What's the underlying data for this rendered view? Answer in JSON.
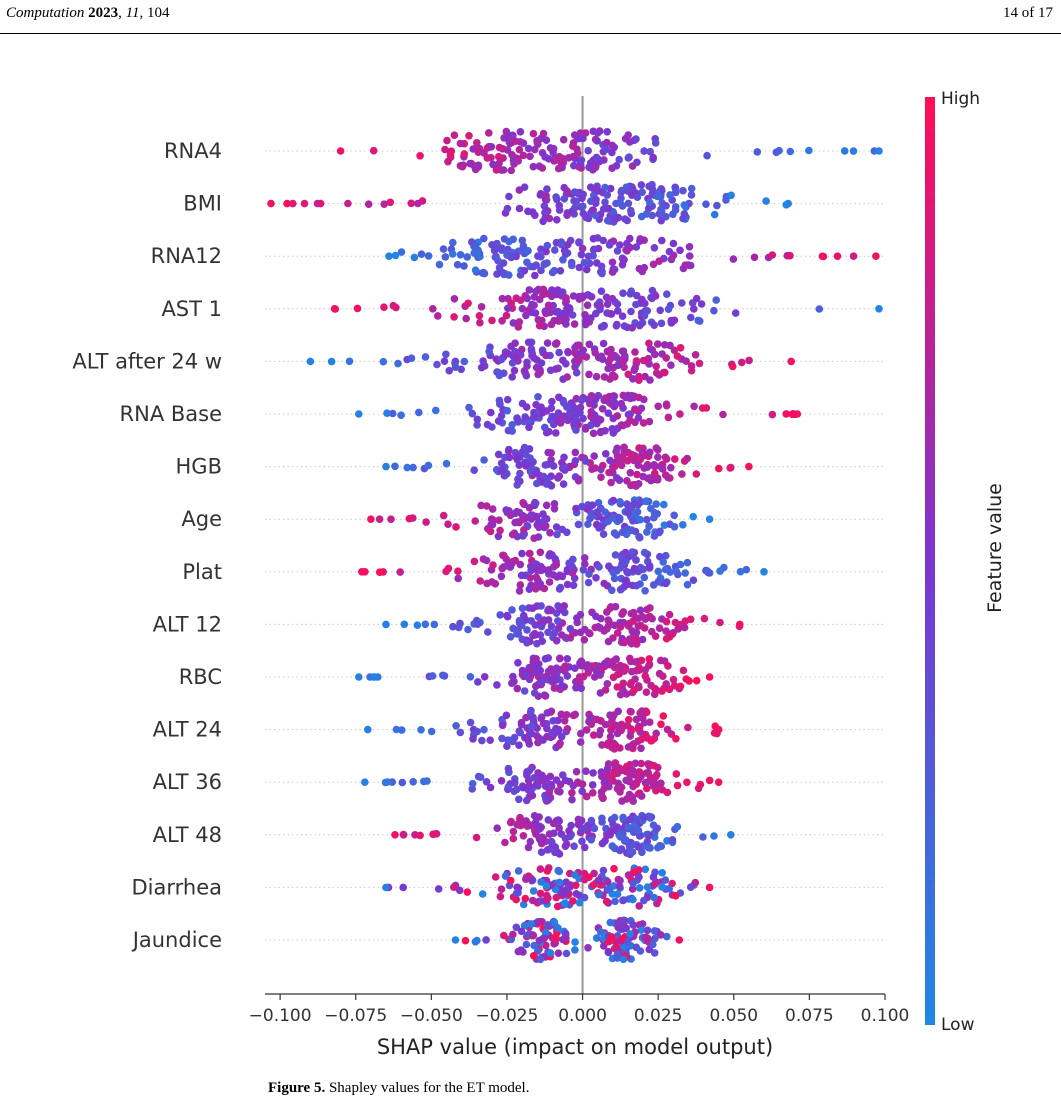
{
  "header": {
    "journal": "Computation",
    "year": "2023",
    "volume": "11",
    "article": "104",
    "page": "14 of 17"
  },
  "caption": {
    "label": "Figure 5.",
    "text": "Shapley values for the ET model."
  },
  "colors": {
    "low": "#1e88e5",
    "mid": "#7b36d0",
    "high": "#ff0d57",
    "zero_line": "#999999"
  },
  "chart_data": {
    "type": "scatter",
    "subtype": "shap-beeswarm",
    "xlabel": "SHAP value (impact on model output)",
    "xlim": [
      -0.105,
      0.1
    ],
    "xticks": [
      -0.1,
      -0.075,
      -0.05,
      -0.025,
      0.0,
      0.025,
      0.05,
      0.075,
      0.1
    ],
    "xtick_labels": [
      "−0.100",
      "−0.075",
      "−0.050",
      "−0.025",
      "0.000",
      "0.025",
      "0.050",
      "0.075",
      "0.100"
    ],
    "grid": "horizontal dotted per feature",
    "colorbar": {
      "label": "Feature value",
      "high_label": "High",
      "low_label": "Low",
      "position": "right"
    },
    "features": [
      {
        "name": "RNA4",
        "min": -0.08,
        "max": 0.098,
        "modes": [
          -0.025,
          0.005
        ],
        "high_side": "negative"
      },
      {
        "name": "BMI",
        "min": -0.103,
        "max": 0.068,
        "modes": [
          -0.005,
          0.018
        ],
        "high_side": "negative"
      },
      {
        "name": "RNA12",
        "min": -0.064,
        "max": 0.097,
        "modes": [
          -0.022,
          0.012
        ],
        "high_side": "positive"
      },
      {
        "name": "AST 1",
        "min": -0.082,
        "max": 0.098,
        "modes": [
          -0.012,
          0.015
        ],
        "high_side": "negative"
      },
      {
        "name": "ALT after 24 w",
        "min": -0.09,
        "max": 0.069,
        "modes": [
          -0.015,
          0.015
        ],
        "high_side": "positive"
      },
      {
        "name": "RNA Base",
        "min": -0.074,
        "max": 0.071,
        "modes": [
          -0.012,
          0.008
        ],
        "high_side": "positive"
      },
      {
        "name": "HGB",
        "min": -0.065,
        "max": 0.055,
        "modes": [
          -0.015,
          0.018
        ],
        "high_side": "positive"
      },
      {
        "name": "Age",
        "min": -0.07,
        "max": 0.042,
        "modes": [
          -0.02,
          0.015
        ],
        "high_side": "negative"
      },
      {
        "name": "Plat",
        "min": -0.073,
        "max": 0.06,
        "modes": [
          -0.015,
          0.017
        ],
        "high_side": "negative"
      },
      {
        "name": "ALT 12",
        "min": -0.065,
        "max": 0.052,
        "modes": [
          -0.012,
          0.017
        ],
        "high_side": "positive"
      },
      {
        "name": "RBC",
        "min": -0.074,
        "max": 0.042,
        "modes": [
          -0.01,
          0.017
        ],
        "high_side": "positive"
      },
      {
        "name": "ALT 24",
        "min": -0.071,
        "max": 0.045,
        "modes": [
          -0.015,
          0.014
        ],
        "high_side": "positive"
      },
      {
        "name": "ALT 36",
        "min": -0.072,
        "max": 0.045,
        "modes": [
          -0.012,
          0.015
        ],
        "high_side": "positive"
      },
      {
        "name": "ALT 48",
        "min": -0.062,
        "max": 0.049,
        "modes": [
          -0.012,
          0.016
        ],
        "high_side": "negative"
      },
      {
        "name": "Diarrhea",
        "min": -0.065,
        "max": 0.042,
        "modes": [
          -0.012,
          0.015
        ],
        "high_side": "mixed"
      },
      {
        "name": "Jaundice",
        "min": -0.042,
        "max": 0.032,
        "modes": [
          -0.012,
          0.014
        ],
        "high_side": "mixed"
      }
    ]
  }
}
